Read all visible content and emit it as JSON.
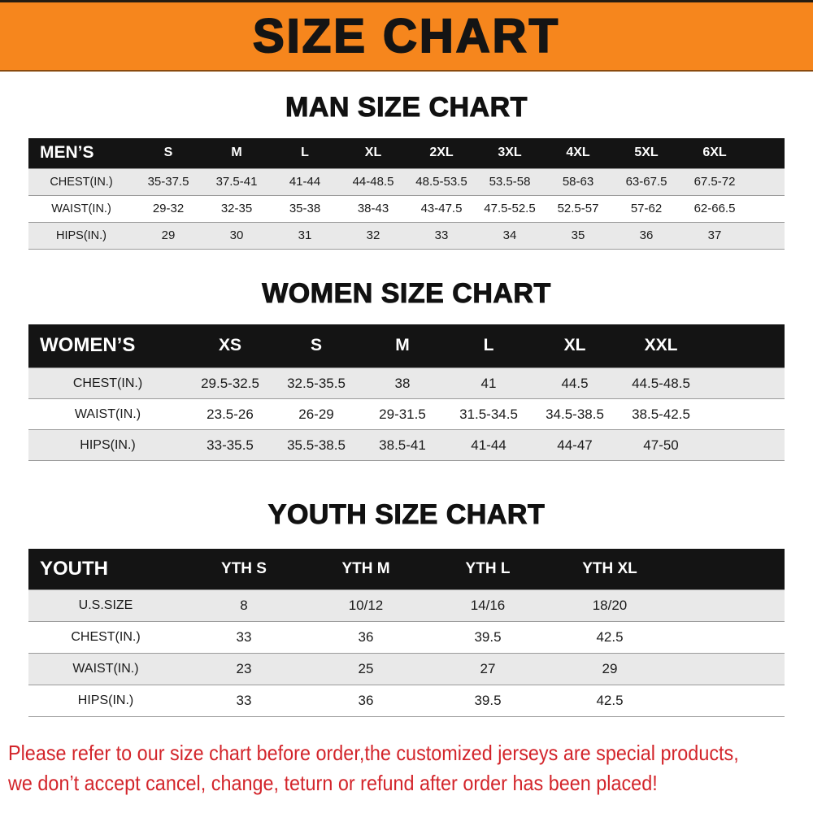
{
  "banner": {
    "title": "SIZE CHART"
  },
  "sections": [
    {
      "id": "men",
      "heading": "MAN SIZE CHART",
      "table": {
        "header": [
          "MEN’S",
          "S",
          "M",
          "L",
          "XL",
          "2XL",
          "3XL",
          "4XL",
          "5XL",
          "6XL"
        ],
        "rows": [
          [
            "CHEST(IN.)",
            "35-37.5",
            "37.5-41",
            "41-44",
            "44-48.5",
            "48.5-53.5",
            "53.5-58",
            "58-63",
            "63-67.5",
            "67.5-72"
          ],
          [
            "WAIST(IN.)",
            "29-32",
            "32-35",
            "35-38",
            "38-43",
            "43-47.5",
            "47.5-52.5",
            "52.5-57",
            "57-62",
            "62-66.5"
          ],
          [
            "HIPS(IN.)",
            "29",
            "30",
            "31",
            "32",
            "33",
            "34",
            "35",
            "36",
            "37"
          ]
        ]
      }
    },
    {
      "id": "women",
      "heading": "WOMEN SIZE CHART",
      "table": {
        "header": [
          "WOMEN’S",
          "XS",
          "S",
          "M",
          "L",
          "XL",
          "XXL"
        ],
        "rows": [
          [
            "CHEST(IN.)",
            "29.5-32.5",
            "32.5-35.5",
            "38",
            "41",
            "44.5",
            "44.5-48.5"
          ],
          [
            "WAIST(IN.)",
            "23.5-26",
            "26-29",
            "29-31.5",
            "31.5-34.5",
            "34.5-38.5",
            "38.5-42.5"
          ],
          [
            "HIPS(IN.)",
            "33-35.5",
            "35.5-38.5",
            "38.5-41",
            "41-44",
            "44-47",
            "47-50"
          ]
        ]
      }
    },
    {
      "id": "youth",
      "heading": "YOUTH SIZE CHART",
      "table": {
        "header": [
          "YOUTH",
          "YTH S",
          "YTH M",
          "YTH L",
          "YTH XL"
        ],
        "rows": [
          [
            "U.S.SIZE",
            "8",
            "10/12",
            "14/16",
            "18/20"
          ],
          [
            "CHEST(IN.)",
            "33",
            "36",
            "39.5",
            "42.5"
          ],
          [
            "WAIST(IN.)",
            "23",
            "25",
            "27",
            "29"
          ],
          [
            "HIPS(IN.)",
            "33",
            "36",
            "39.5",
            "42.5"
          ]
        ]
      }
    }
  ],
  "footer": {
    "lines": [
      "Please refer to our size chart before order,the customized jerseys are special products,",
      "we don’t accept cancel, change, teturn or refund after order has been placed!"
    ]
  },
  "colors": {
    "banner_bg": "#F6861D",
    "table_header_bg": "#141414",
    "row_alt_bg": "#e9e9e9",
    "footer_text": "#D3252B",
    "heading_text": "#111111"
  }
}
